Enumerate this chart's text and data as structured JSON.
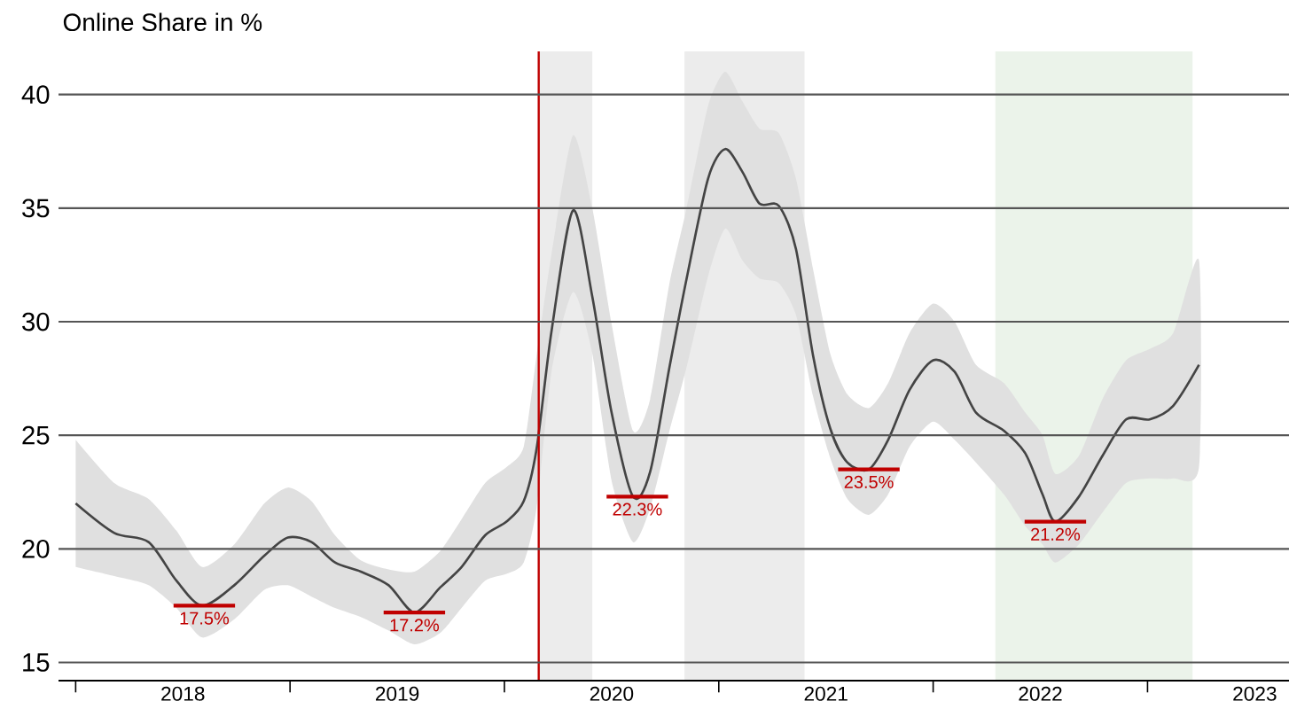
{
  "chart_data": {
    "type": "line",
    "title": "Online Share in %",
    "x": [
      2018.0,
      2018.18,
      2018.34,
      2018.47,
      2018.59,
      2018.74,
      2018.88,
      2018.99,
      2019.1,
      2019.21,
      2019.33,
      2019.46,
      2019.58,
      2019.7,
      2019.8,
      2019.91,
      2020.01,
      2020.09,
      2020.15,
      2020.22,
      2020.32,
      2020.41,
      2020.5,
      2020.6,
      2020.68,
      2020.77,
      2020.85,
      2020.95,
      2021.03,
      2021.11,
      2021.19,
      2021.28,
      2021.36,
      2021.44,
      2021.52,
      2021.6,
      2021.7,
      2021.79,
      2021.89,
      2022.0,
      2022.1,
      2022.2,
      2022.33,
      2022.43,
      2022.51,
      2022.57,
      2022.68,
      2022.79,
      2022.9,
      2023.01,
      2023.12,
      2023.24
    ],
    "series": [
      {
        "color": "#444444",
        "values": [
          22.0,
          20.7,
          20.3,
          18.6,
          17.5,
          18.4,
          19.7,
          20.5,
          20.3,
          19.4,
          19.0,
          18.4,
          17.2,
          18.3,
          19.2,
          20.6,
          21.2,
          22.1,
          24.4,
          29.6,
          34.9,
          31.1,
          26.0,
          22.3,
          23.4,
          28.0,
          31.9,
          36.3,
          37.6,
          36.6,
          35.2,
          35.1,
          33.2,
          28.5,
          25.3,
          23.8,
          23.5,
          24.8,
          27.0,
          28.3,
          27.8,
          26.0,
          25.2,
          24.2,
          22.4,
          21.2,
          22.3,
          24.1,
          25.7,
          25.7,
          26.3,
          28.1
        ],
        "upper": [
          24.8,
          22.9,
          22.2,
          20.8,
          19.2,
          20.2,
          22.0,
          22.7,
          22.1,
          20.6,
          19.5,
          19.1,
          19.0,
          19.9,
          21.3,
          22.9,
          23.6,
          24.5,
          28.5,
          33.0,
          38.2,
          35.0,
          29.9,
          25.2,
          26.6,
          31.7,
          35.0,
          39.5,
          41.0,
          39.7,
          38.5,
          38.3,
          36.3,
          32.3,
          28.6,
          26.8,
          26.2,
          27.3,
          29.5,
          30.8,
          30.0,
          28.1,
          27.3,
          26.0,
          25.0,
          23.3,
          24.1,
          26.6,
          28.3,
          28.8,
          29.5,
          32.7
        ],
        "lower": [
          19.2,
          18.8,
          18.4,
          17.4,
          16.1,
          16.9,
          18.2,
          18.4,
          17.9,
          17.4,
          17.0,
          16.4,
          15.8,
          16.3,
          17.4,
          18.6,
          18.9,
          19.4,
          21.8,
          27.8,
          31.3,
          28.6,
          23.0,
          20.3,
          21.8,
          25.2,
          28.0,
          32.0,
          34.1,
          32.7,
          31.9,
          31.7,
          30.3,
          26.7,
          24.0,
          22.2,
          21.5,
          22.4,
          24.5,
          25.6,
          24.8,
          23.8,
          22.4,
          21.0,
          20.2,
          19.4,
          20.2,
          21.6,
          22.9,
          23.1,
          23.1,
          23.6
        ]
      }
    ],
    "xlim": [
      2017.92,
      2023.66
    ],
    "ylim": [
      14.2,
      41.9
    ],
    "xticks": [
      {
        "value": 2018,
        "label": null
      },
      {
        "value": 2018.5,
        "label": "2018"
      },
      {
        "value": 2019,
        "label": null
      },
      {
        "value": 2019.5,
        "label": "2019"
      },
      {
        "value": 2020,
        "label": null
      },
      {
        "value": 2020.5,
        "label": "2020"
      },
      {
        "value": 2021,
        "label": null
      },
      {
        "value": 2021.5,
        "label": "2021"
      },
      {
        "value": 2022,
        "label": null
      },
      {
        "value": 2022.5,
        "label": "2022"
      },
      {
        "value": 2023,
        "label": null
      },
      {
        "value": 2023.5,
        "label": "2023"
      }
    ],
    "yticks": [
      15,
      20,
      25,
      30,
      35,
      40
    ],
    "grid": "y",
    "ref_lines": [
      {
        "axis": "x",
        "value": 2020.16,
        "color": "#c00000"
      }
    ],
    "bands": [
      {
        "axis": "x",
        "from": 2020.16,
        "to": 2020.41,
        "color": "#ececec"
      },
      {
        "axis": "x",
        "from": 2020.84,
        "to": 2021.4,
        "color": "#ececec"
      },
      {
        "axis": "x",
        "from": 2022.29,
        "to": 2023.21,
        "color": "#ebf3ea"
      }
    ],
    "annotations": [
      {
        "text": "17.5%",
        "x": 2018.6,
        "y": 17.5
      },
      {
        "text": "17.2%",
        "x": 2019.58,
        "y": 17.2
      },
      {
        "text": "22.3%",
        "x": 2020.62,
        "y": 22.3
      },
      {
        "text": "23.5%",
        "x": 2021.7,
        "y": 23.5
      },
      {
        "text": "21.2%",
        "x": 2022.57,
        "y": 21.2
      }
    ]
  }
}
